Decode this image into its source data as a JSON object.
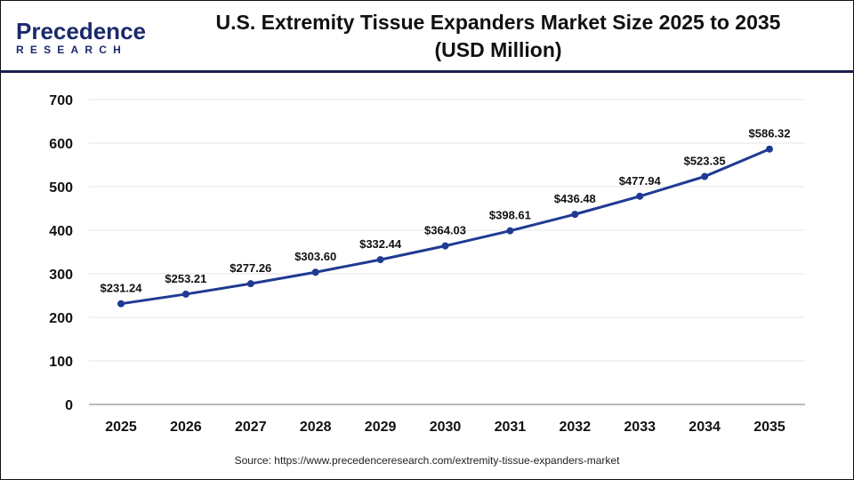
{
  "logo": {
    "text_top": "Precedence",
    "text_bottom": "RESEARCH"
  },
  "title_line1": "U.S. Extremity Tissue Expanders Market Size 2025 to 2035",
  "title_line2": "(USD Million)",
  "source": "Source: https://www.precedenceresearch.com/extremity-tissue-expanders-market",
  "colors": {
    "line": "#1f3a93",
    "grid": "#e6e6e6",
    "header_rule": "#1b1f4a"
  },
  "chart_data": {
    "type": "line",
    "title": "U.S. Extremity Tissue Expanders Market Size 2025 to 2035 (USD Million)",
    "categories": [
      "2025",
      "2026",
      "2027",
      "2028",
      "2029",
      "2030",
      "2031",
      "2032",
      "2033",
      "2034",
      "2035"
    ],
    "values": [
      231.24,
      253.21,
      277.26,
      303.6,
      332.44,
      364.03,
      398.61,
      436.48,
      477.94,
      523.35,
      586.32
    ],
    "labels": [
      "$231.24",
      "$253.21",
      "$277.26",
      "$303.60",
      "$332.44",
      "$364.03",
      "$398.61",
      "$436.48",
      "$477.94",
      "$523.35",
      "$586.32"
    ],
    "ylim": [
      0,
      700
    ],
    "yticks": [
      0,
      100,
      200,
      300,
      400,
      500,
      600,
      700
    ],
    "grid": true,
    "xlabel": "",
    "ylabel": ""
  }
}
